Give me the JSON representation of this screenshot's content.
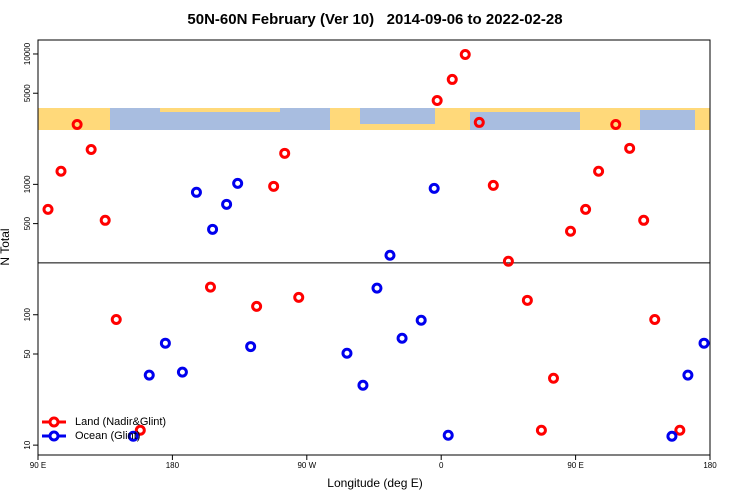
{
  "chart_data": {
    "type": "scatter",
    "title": "50N-60N February (Ver 10)   2014-09-06 to 2022-02-28",
    "xlabel": "Longitude (deg E)",
    "ylabel": "N Total",
    "ylog": true,
    "xlim": [
      90,
      540
    ],
    "ylim": [
      8.4,
      12800
    ],
    "xticks": [
      {
        "value": 90,
        "label": "90 E"
      },
      {
        "value": 180,
        "label": "180"
      },
      {
        "value": 270,
        "label": "90 W"
      },
      {
        "value": 360,
        "label": "0"
      },
      {
        "value": 450,
        "label": "90 E"
      },
      {
        "value": 540,
        "label": "180"
      }
    ],
    "yticks": [
      10,
      50,
      100,
      500,
      1000,
      5000,
      10000
    ],
    "reference_line": 250,
    "legend": "bottom-left",
    "series": [
      {
        "name": "Land (Nadir&Glint)",
        "color": "#ff0000",
        "x": [
          96.7,
          105.4,
          116.2,
          125.6,
          135.0,
          142.4,
          158.5,
          205.5,
          236.4,
          247.8,
          255.2,
          264.6,
          357.3,
          367.4,
          376.1,
          385.5,
          394.9,
          405.0,
          417.7,
          427.1,
          435.2,
          446.6,
          456.7,
          465.4,
          476.9,
          486.2,
          495.6,
          503.0,
          519.8
        ],
        "values": [
          643,
          1260,
          2880,
          1850,
          530,
          92,
          13,
          163,
          116,
          966,
          1730,
          136,
          4400,
          6380,
          9910,
          2985,
          982,
          257,
          129,
          13,
          32.6,
          437,
          643,
          1260,
          2880,
          1890,
          530,
          92,
          13
        ]
      },
      {
        "name": "Ocean (Glint)",
        "color": "#0000ee",
        "x": [
          153.8,
          164.5,
          175.3,
          186.7,
          196.1,
          206.9,
          216.3,
          223.7,
          232.4,
          296.9,
          307.6,
          317.0,
          325.7,
          333.8,
          346.6,
          355.3,
          364.7,
          514.5,
          525.2,
          536.0
        ],
        "values": [
          11.7,
          34.4,
          60.5,
          36.3,
          869,
          452,
          703,
          1018,
          57,
          50.7,
          28.8,
          160,
          286,
          66,
          90.7,
          932,
          11.9,
          11.7,
          34.4,
          60.5
        ]
      }
    ]
  }
}
